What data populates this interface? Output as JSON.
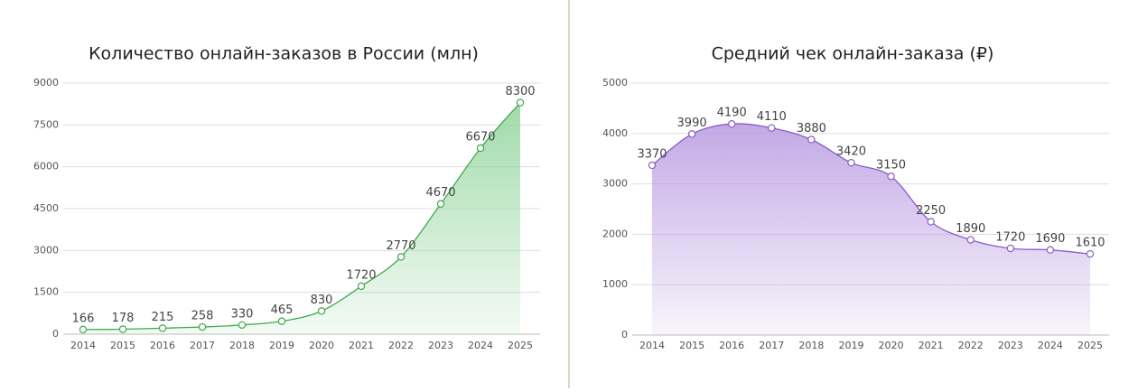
{
  "chart_data": [
    {
      "type": "line",
      "title": "Количество онлайн-заказов в России (млн)",
      "categories": [
        "2014",
        "2015",
        "2016",
        "2017",
        "2018",
        "2019",
        "2020",
        "2021",
        "2022",
        "2023",
        "2024",
        "2025"
      ],
      "values": [
        166,
        178,
        215,
        258,
        330,
        465,
        830,
        1720,
        2770,
        4670,
        6670,
        8300
      ],
      "color": "#3eaa4c",
      "area_color": "#8fd49a",
      "ylim": [
        0,
        9000
      ],
      "yticks": [
        0,
        1500,
        3000,
        4500,
        6000,
        7500,
        9000
      ],
      "grid": true
    },
    {
      "type": "line",
      "title": "Средний чек онлайн-заказа (₽)",
      "categories": [
        "2014",
        "2015",
        "2016",
        "2017",
        "2018",
        "2019",
        "2020",
        "2021",
        "2022",
        "2023",
        "2024",
        "2025"
      ],
      "values": [
        3370,
        3990,
        4190,
        4110,
        3880,
        3420,
        3150,
        2250,
        1890,
        1720,
        1690,
        1610
      ],
      "color": "#8a5cc8",
      "area_color": "#b89ae0",
      "ylim": [
        0,
        5000
      ],
      "yticks": [
        0,
        1000,
        2000,
        3000,
        4000,
        5000
      ],
      "grid": true
    }
  ]
}
